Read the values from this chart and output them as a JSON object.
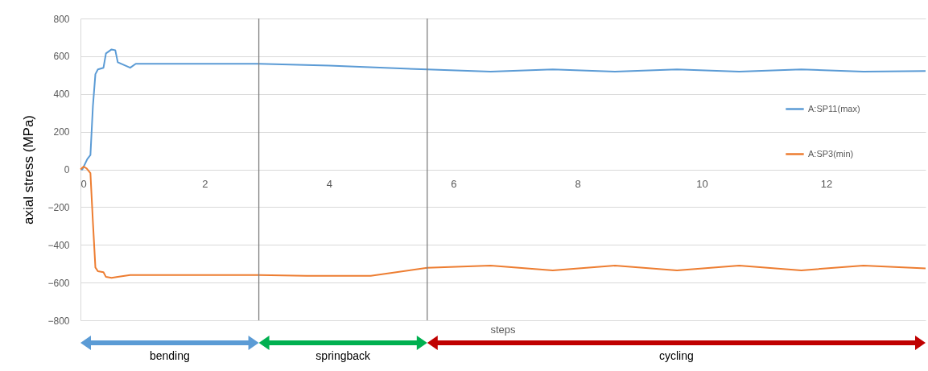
{
  "chart_data": {
    "type": "line",
    "xlabel": "steps",
    "ylabel": "axial stress (MPa)",
    "xlim": [
      0,
      13.6
    ],
    "xticks": [
      0,
      2,
      4,
      6,
      8,
      10,
      12
    ],
    "ylim": [
      -800,
      800
    ],
    "yticks": [
      -800,
      -600,
      -400,
      -200,
      0,
      200,
      400,
      600,
      800
    ],
    "grid": "y",
    "legend": "right",
    "line_style": "solid",
    "marker": "none",
    "series": [
      {
        "name": "A:SP11(max)",
        "color": "#5b9bd5",
        "x": [
          0,
          0.03,
          0.11,
          0.16,
          0.2,
          0.24,
          0.28,
          0.37,
          0.41,
          0.5,
          0.56,
          0.6,
          0.8,
          0.89,
          1.5,
          2.87,
          4.0,
          5.58,
          6.6,
          7.6,
          8.6,
          9.6,
          10.6,
          11.6,
          12.6,
          13.6
        ],
        "values": [
          0,
          0,
          55,
          76,
          336,
          505,
          530,
          539,
          615,
          636,
          632,
          568,
          539,
          560,
          560,
          560,
          550,
          530,
          518,
          530,
          518,
          530,
          518,
          530,
          518,
          522
        ]
      },
      {
        "name": "A:SP3(min)",
        "color": "#ed7d31",
        "x": [
          0,
          0.05,
          0.1,
          0.16,
          0.2,
          0.24,
          0.28,
          0.37,
          0.41,
          0.5,
          0.6,
          0.8,
          1.5,
          2.87,
          3.64,
          4.67,
          5.58,
          6.6,
          7.6,
          8.6,
          9.6,
          10.6,
          11.6,
          12.6,
          13.6
        ],
        "values": [
          0,
          15,
          5,
          -20,
          -280,
          -520,
          -540,
          -545,
          -570,
          -575,
          -570,
          -560,
          -560,
          -560,
          -564,
          -564,
          -522,
          -510,
          -535,
          -510,
          -535,
          -510,
          -535,
          -510,
          -525
        ]
      }
    ],
    "ref_lines": [
      {
        "axis": "x",
        "value": 2.87,
        "color": "#808080"
      },
      {
        "axis": "x",
        "value": 5.58,
        "color": "#808080"
      }
    ],
    "annotations": [
      "bending",
      "springback",
      "cycling"
    ]
  }
}
